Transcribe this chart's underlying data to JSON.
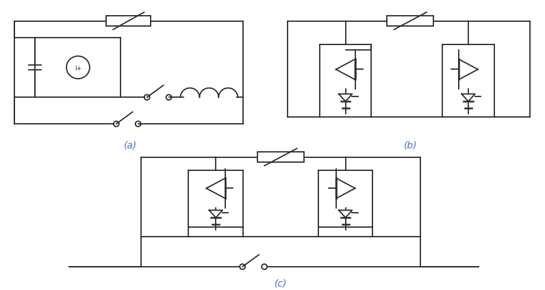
{
  "title_a": "(a)",
  "title_b": "(b)",
  "title_c": "(c)",
  "bg_color": "#ffffff",
  "line_color": "#2a2a2a",
  "label_color": "#4472c4",
  "lw": 1.3
}
